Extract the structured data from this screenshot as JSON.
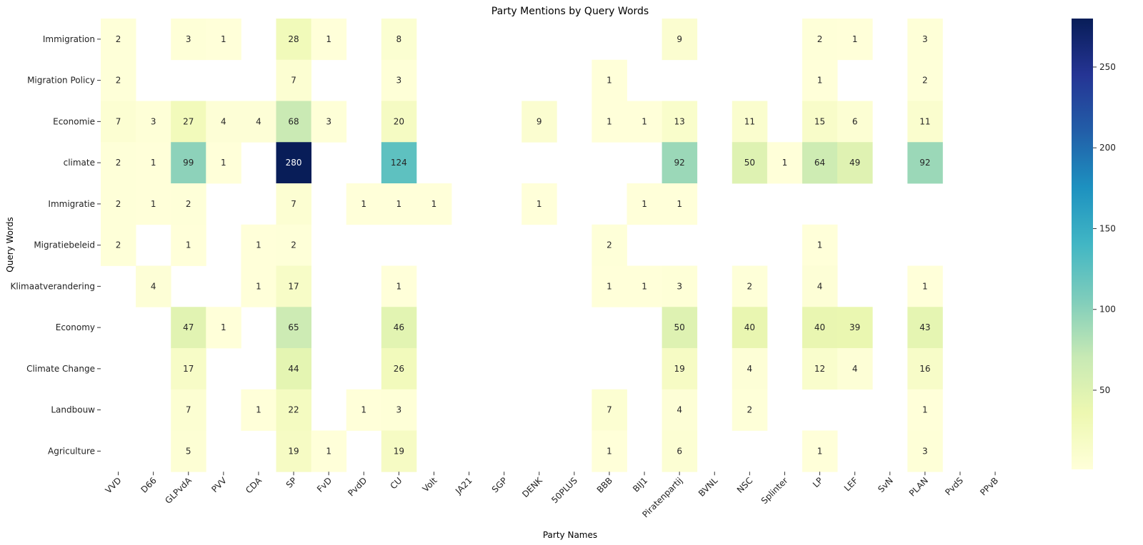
{
  "chart_data": {
    "type": "heatmap",
    "title": "Party Mentions by Query Words",
    "xlabel": "Party Names",
    "ylabel": "Query Words",
    "x_categories": [
      "VVD",
      "D66",
      "GLPvdA",
      "PVV",
      "CDA",
      "SP",
      "FvD",
      "PvdD",
      "CU",
      "Volt",
      "JA21",
      "SGP",
      "DENK",
      "50PLUS",
      "BBB",
      "BIJ1",
      "Piratenpartij",
      "BVNL",
      "NSC",
      "Splinter",
      "LP",
      "LEF",
      "SvN",
      "PLAN",
      "PvdS",
      "PPvB"
    ],
    "y_categories": [
      "Immigration",
      "Migration Policy",
      "Economie",
      "climate",
      "Immigratie",
      "Migratiebeleid",
      "Klimaatverandering",
      "Economy",
      "Climate Change",
      "Landbouw",
      "Agriculture"
    ],
    "values": [
      [
        2,
        null,
        3,
        1,
        null,
        28,
        1,
        null,
        8,
        null,
        null,
        null,
        null,
        null,
        null,
        null,
        9,
        null,
        null,
        null,
        2,
        1,
        null,
        3,
        null,
        null
      ],
      [
        2,
        null,
        null,
        null,
        null,
        7,
        null,
        null,
        3,
        null,
        null,
        null,
        null,
        null,
        1,
        null,
        null,
        null,
        null,
        null,
        1,
        null,
        null,
        2,
        null,
        null
      ],
      [
        7,
        3,
        27,
        4,
        4,
        68,
        3,
        null,
        20,
        null,
        null,
        null,
        9,
        null,
        1,
        1,
        13,
        null,
        11,
        null,
        15,
        6,
        null,
        11,
        null,
        null
      ],
      [
        2,
        1,
        99,
        1,
        null,
        280,
        null,
        null,
        124,
        null,
        null,
        null,
        null,
        null,
        null,
        null,
        92,
        null,
        50,
        1,
        64,
        49,
        null,
        92,
        null,
        null
      ],
      [
        2,
        1,
        2,
        null,
        null,
        7,
        null,
        1,
        1,
        1,
        null,
        null,
        1,
        null,
        null,
        1,
        1,
        null,
        null,
        null,
        null,
        null,
        null,
        null,
        null,
        null
      ],
      [
        2,
        null,
        1,
        null,
        1,
        2,
        null,
        null,
        null,
        null,
        null,
        null,
        null,
        null,
        2,
        null,
        null,
        null,
        null,
        null,
        1,
        null,
        null,
        null,
        null,
        null
      ],
      [
        null,
        4,
        null,
        null,
        1,
        17,
        null,
        null,
        1,
        null,
        null,
        null,
        null,
        null,
        1,
        1,
        3,
        null,
        2,
        null,
        4,
        null,
        null,
        1,
        null,
        null
      ],
      [
        null,
        null,
        47,
        1,
        null,
        65,
        null,
        null,
        46,
        null,
        null,
        null,
        null,
        null,
        null,
        null,
        50,
        null,
        40,
        null,
        40,
        39,
        null,
        43,
        null,
        null
      ],
      [
        null,
        null,
        17,
        null,
        null,
        44,
        null,
        null,
        26,
        null,
        null,
        null,
        null,
        null,
        null,
        null,
        19,
        null,
        4,
        null,
        12,
        4,
        null,
        16,
        null,
        null
      ],
      [
        null,
        null,
        7,
        null,
        1,
        22,
        null,
        1,
        3,
        null,
        null,
        null,
        null,
        null,
        7,
        null,
        4,
        null,
        2,
        null,
        null,
        null,
        null,
        1,
        null,
        null
      ],
      [
        null,
        null,
        5,
        null,
        null,
        19,
        1,
        null,
        19,
        null,
        null,
        null,
        null,
        null,
        1,
        null,
        6,
        null,
        null,
        null,
        1,
        null,
        null,
        3,
        null,
        null
      ]
    ],
    "colorbar": {
      "min": 1,
      "max": 280,
      "ticks": [
        50,
        100,
        150,
        200,
        250
      ]
    },
    "colormap": "YlGnBu",
    "colormap_stops": [
      "#ffffd9",
      "#edf8b1",
      "#c7e9b4",
      "#7fcdbb",
      "#41b6c4",
      "#1d91c0",
      "#225ea8",
      "#253494",
      "#081d58"
    ],
    "annotations": true
  }
}
